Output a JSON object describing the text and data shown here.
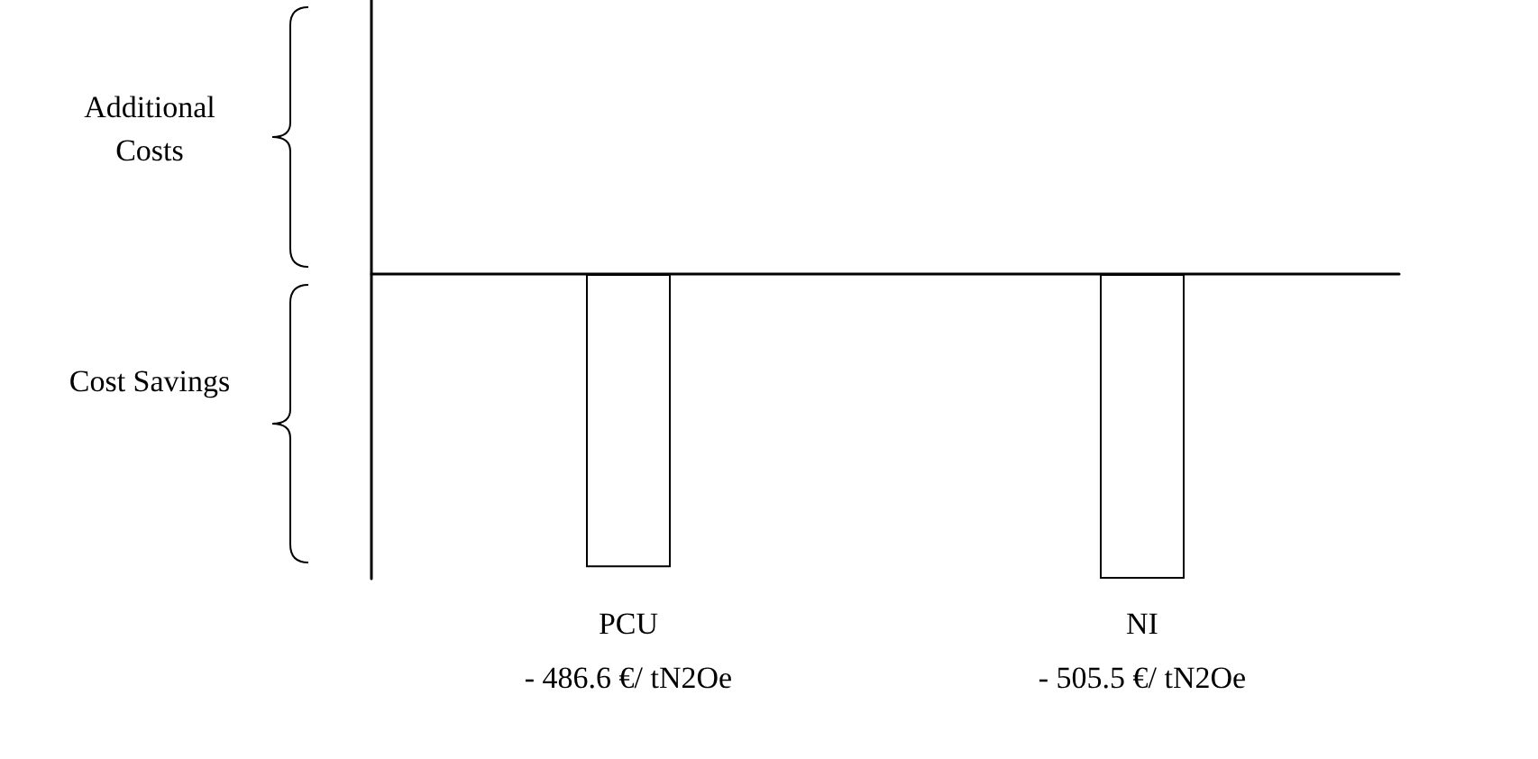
{
  "chart_data": {
    "type": "bar",
    "categories": [
      "PCU",
      "NI"
    ],
    "values": [
      -486.6,
      -505.5
    ],
    "value_labels": [
      "- 486.6 €/ tN2Oe",
      "- 505.5 €/ tN2Oe"
    ],
    "color": "#ffffff",
    "annotations": [
      "Additional Costs",
      "Cost Savings"
    ]
  }
}
